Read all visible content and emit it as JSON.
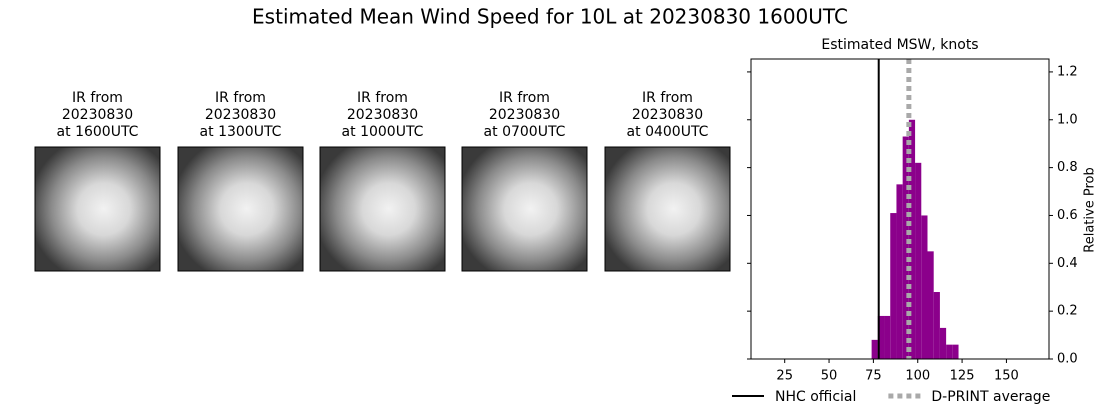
{
  "title": "Estimated Mean Wind Speed for 10L at 20230830 1600UTC",
  "panels": [
    {
      "lines": [
        "IR from",
        "20230830",
        "at 1600UTC"
      ]
    },
    {
      "lines": [
        "IR from",
        "20230830",
        "at 1300UTC"
      ]
    },
    {
      "lines": [
        "IR from",
        "20230830",
        "at 1000UTC"
      ]
    },
    {
      "lines": [
        "IR from",
        "20230830",
        "at 0700UTC"
      ]
    },
    {
      "lines": [
        "IR from",
        "20230830",
        "at 0400UTC"
      ]
    }
  ],
  "chart_data": {
    "type": "histogram",
    "title": "Estimated MSW, knots",
    "y_axis_label": "Relative Prob",
    "y_axis_side": "right",
    "color": "#8b008b",
    "bins": [
      74,
      77.5,
      81,
      84.5,
      88,
      91.5,
      95,
      98.5,
      102,
      105.5,
      109,
      112.5,
      116,
      119.5,
      123
    ],
    "values": [
      0.08,
      0.18,
      0.18,
      0.61,
      0.73,
      0.93,
      1.0,
      0.82,
      0.6,
      0.45,
      0.28,
      0.13,
      0.06,
      0.06
    ],
    "xlim": [
      6,
      174
    ],
    "ylim": [
      0,
      1.254
    ],
    "xticks": [
      25,
      50,
      75,
      100,
      125,
      150
    ],
    "yticks": [
      {
        "value": 0,
        "label": "0.0"
      },
      {
        "value": 0.2,
        "label": "0.2"
      },
      {
        "value": 0.4,
        "label": "0.4"
      },
      {
        "value": 0.6,
        "label": "0.6"
      },
      {
        "value": 0.8,
        "label": "0.8"
      },
      {
        "value": 1.0,
        "label": "1.0"
      },
      {
        "value": 1.2,
        "label": "1.2"
      }
    ],
    "vlines": [
      {
        "name": "NHC official",
        "value": 78,
        "color": "#000000",
        "style": "solid"
      },
      {
        "name": "D-PRINT average",
        "value": 95,
        "color": "#a9a9a9",
        "style": "dotted"
      }
    ],
    "legend": "bottom"
  }
}
